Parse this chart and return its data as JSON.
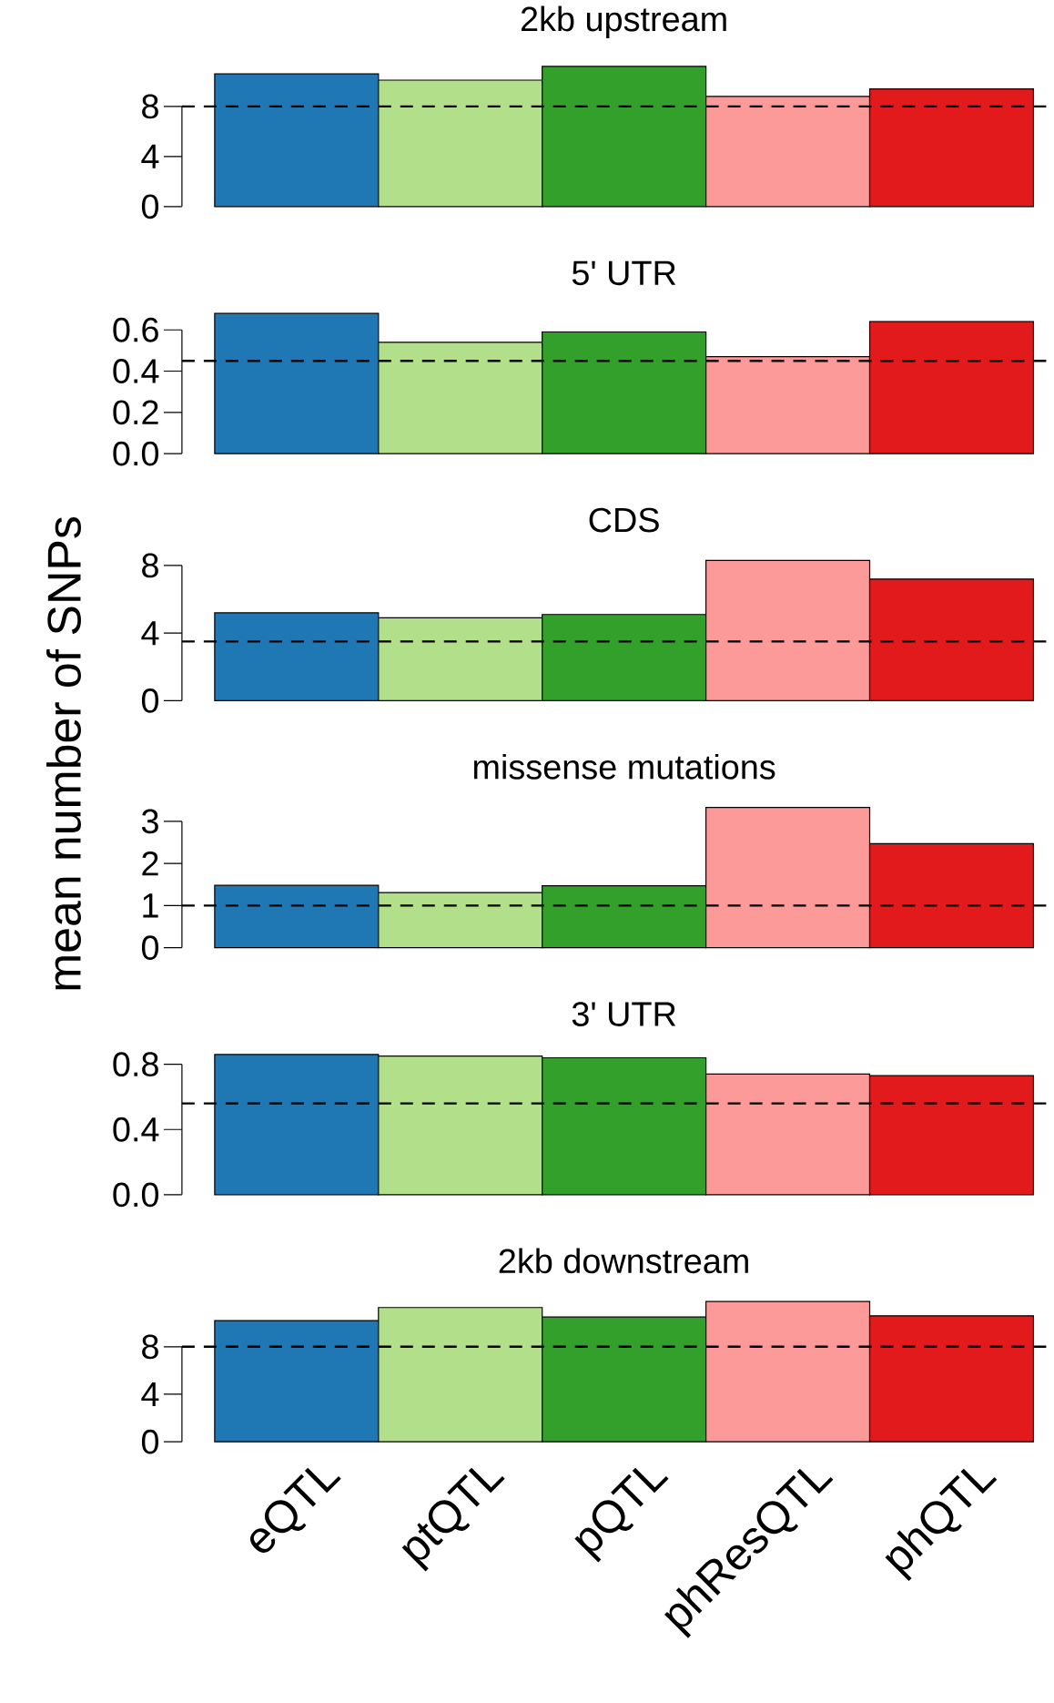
{
  "chart_data": [
    {
      "type": "bar",
      "title": "2kb upstream",
      "categories": [
        null,
        null,
        null,
        null,
        null
      ],
      "colors": [
        "#1f78b4",
        "#b2df8a",
        "#33a02c",
        "#fb9a99",
        "#e31a1c"
      ],
      "values": [
        10.6,
        10.1,
        11.2,
        8.8,
        9.4
      ],
      "ylim": [
        0,
        11.2
      ],
      "yticks": [
        0,
        4,
        8
      ],
      "ref_lines": [
        {
          "axis": "y",
          "value": 8,
          "line_style": "dashed"
        }
      ],
      "tick_labels": "y"
    },
    {
      "type": "bar",
      "title": "5' UTR",
      "categories": [
        null,
        null,
        null,
        null,
        null
      ],
      "colors": [
        "#1f78b4",
        "#b2df8a",
        "#33a02c",
        "#fb9a99",
        "#e31a1c"
      ],
      "values": [
        0.68,
        0.54,
        0.59,
        0.47,
        0.64
      ],
      "ylim": [
        0,
        0.68
      ],
      "yticks": [
        {
          "value": 0,
          "label": "0.0"
        },
        0.2,
        0.4,
        0.6
      ],
      "ref_lines": [
        {
          "axis": "y",
          "value": 0.45,
          "line_style": "dashed"
        }
      ],
      "tick_labels": "y"
    },
    {
      "type": "bar",
      "title": "CDS",
      "categories": [
        null,
        null,
        null,
        null,
        null
      ],
      "colors": [
        "#1f78b4",
        "#b2df8a",
        "#33a02c",
        "#fb9a99",
        "#e31a1c"
      ],
      "values": [
        5.2,
        4.9,
        5.1,
        8.3,
        7.2
      ],
      "ylim": [
        0,
        8.3
      ],
      "yticks": [
        0,
        4,
        8
      ],
      "ref_lines": [
        {
          "axis": "y",
          "value": 3.5,
          "line_style": "dashed"
        }
      ],
      "tick_labels": "y"
    },
    {
      "type": "bar",
      "title": "missense mutations",
      "ylabel": "mean number of SNPs",
      "categories": [
        null,
        null,
        null,
        null,
        null
      ],
      "colors": [
        "#1f78b4",
        "#b2df8a",
        "#33a02c",
        "#fb9a99",
        "#e31a1c"
      ],
      "values": [
        1.48,
        1.31,
        1.47,
        3.33,
        2.47
      ],
      "ylim": [
        0,
        3.33
      ],
      "yticks": [
        0,
        1,
        2,
        3
      ],
      "ref_lines": [
        {
          "axis": "y",
          "value": 1,
          "line_style": "dashed"
        }
      ],
      "tick_labels": "y"
    },
    {
      "type": "bar",
      "title": "3' UTR",
      "categories": [
        null,
        null,
        null,
        null,
        null
      ],
      "colors": [
        "#1f78b4",
        "#b2df8a",
        "#33a02c",
        "#fb9a99",
        "#e31a1c"
      ],
      "values": [
        0.86,
        0.85,
        0.84,
        0.74,
        0.73
      ],
      "ylim": [
        0,
        0.86
      ],
      "yticks": [
        {
          "value": 0,
          "label": "0.0"
        },
        0.4,
        0.8
      ],
      "ref_lines": [
        {
          "axis": "y",
          "value": 0.56,
          "line_style": "dashed"
        }
      ],
      "tick_labels": "y"
    },
    {
      "type": "bar",
      "title": "2kb downstream",
      "categories": [
        "eQTL",
        "ptQTL",
        "pQTL",
        "phResQTL",
        "phQTL"
      ],
      "colors": [
        "#1f78b4",
        "#b2df8a",
        "#33a02c",
        "#fb9a99",
        "#e31a1c"
      ],
      "values": [
        10.2,
        11.3,
        10.5,
        11.8,
        10.6
      ],
      "ylim": [
        0,
        11.8
      ],
      "yticks": [
        0,
        4,
        8
      ],
      "ref_lines": [
        {
          "axis": "y",
          "value": 8,
          "line_style": "dashed"
        }
      ]
    }
  ]
}
